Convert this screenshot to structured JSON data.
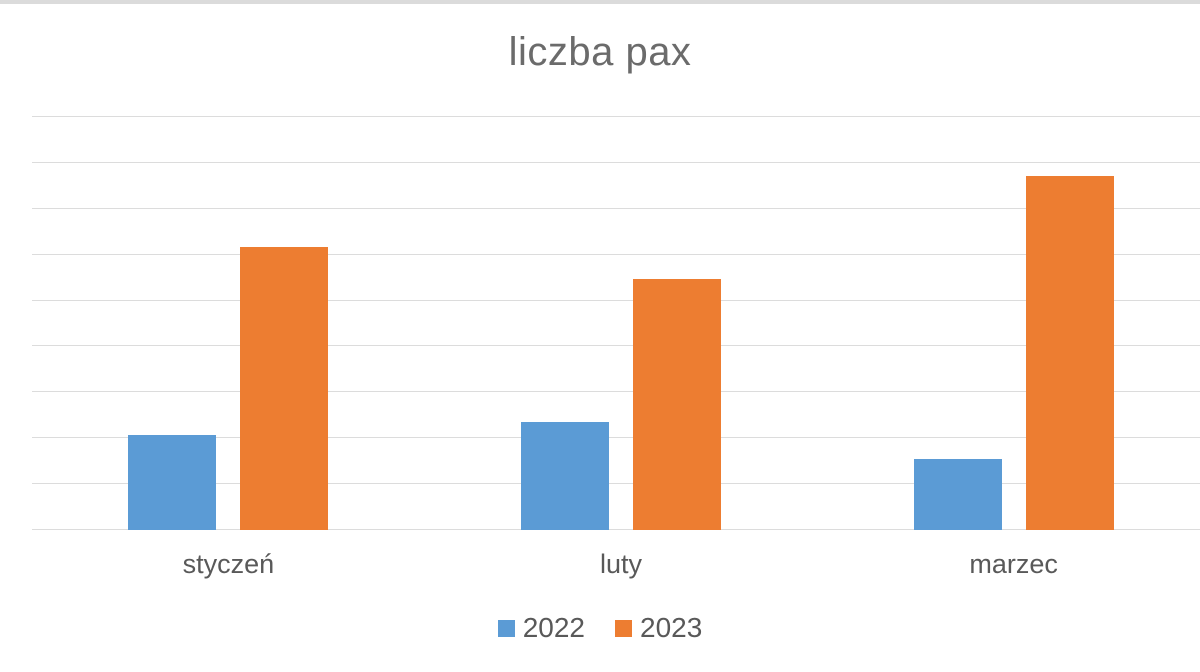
{
  "window": {
    "top_strip_color": "#dbdbdb",
    "background_color": "#ffffff"
  },
  "chart_data": {
    "type": "bar",
    "title": "liczba pax",
    "title_color": "#6b6b6b",
    "categories": [
      "styczeń",
      "luty",
      "marzec"
    ],
    "series": [
      {
        "name": "2022",
        "color": "#5b9bd5",
        "values": [
          2.07,
          2.35,
          1.55
        ]
      },
      {
        "name": "2023",
        "color": "#ed7d31",
        "values": [
          6.17,
          5.47,
          7.71
        ]
      }
    ],
    "xlabel": "",
    "ylabel": "",
    "ylim": [
      0,
      9
    ],
    "y_axis_labels_visible": false,
    "value_unit_note": "y-axis has no tick labels; values estimated in gridline units (1 unit = 1 gridline interval)",
    "grid": "horizontal",
    "gridline_count": 10,
    "gridline_color": "#dcdcdc",
    "label_color": "#595959",
    "legend_position": "bottom"
  }
}
